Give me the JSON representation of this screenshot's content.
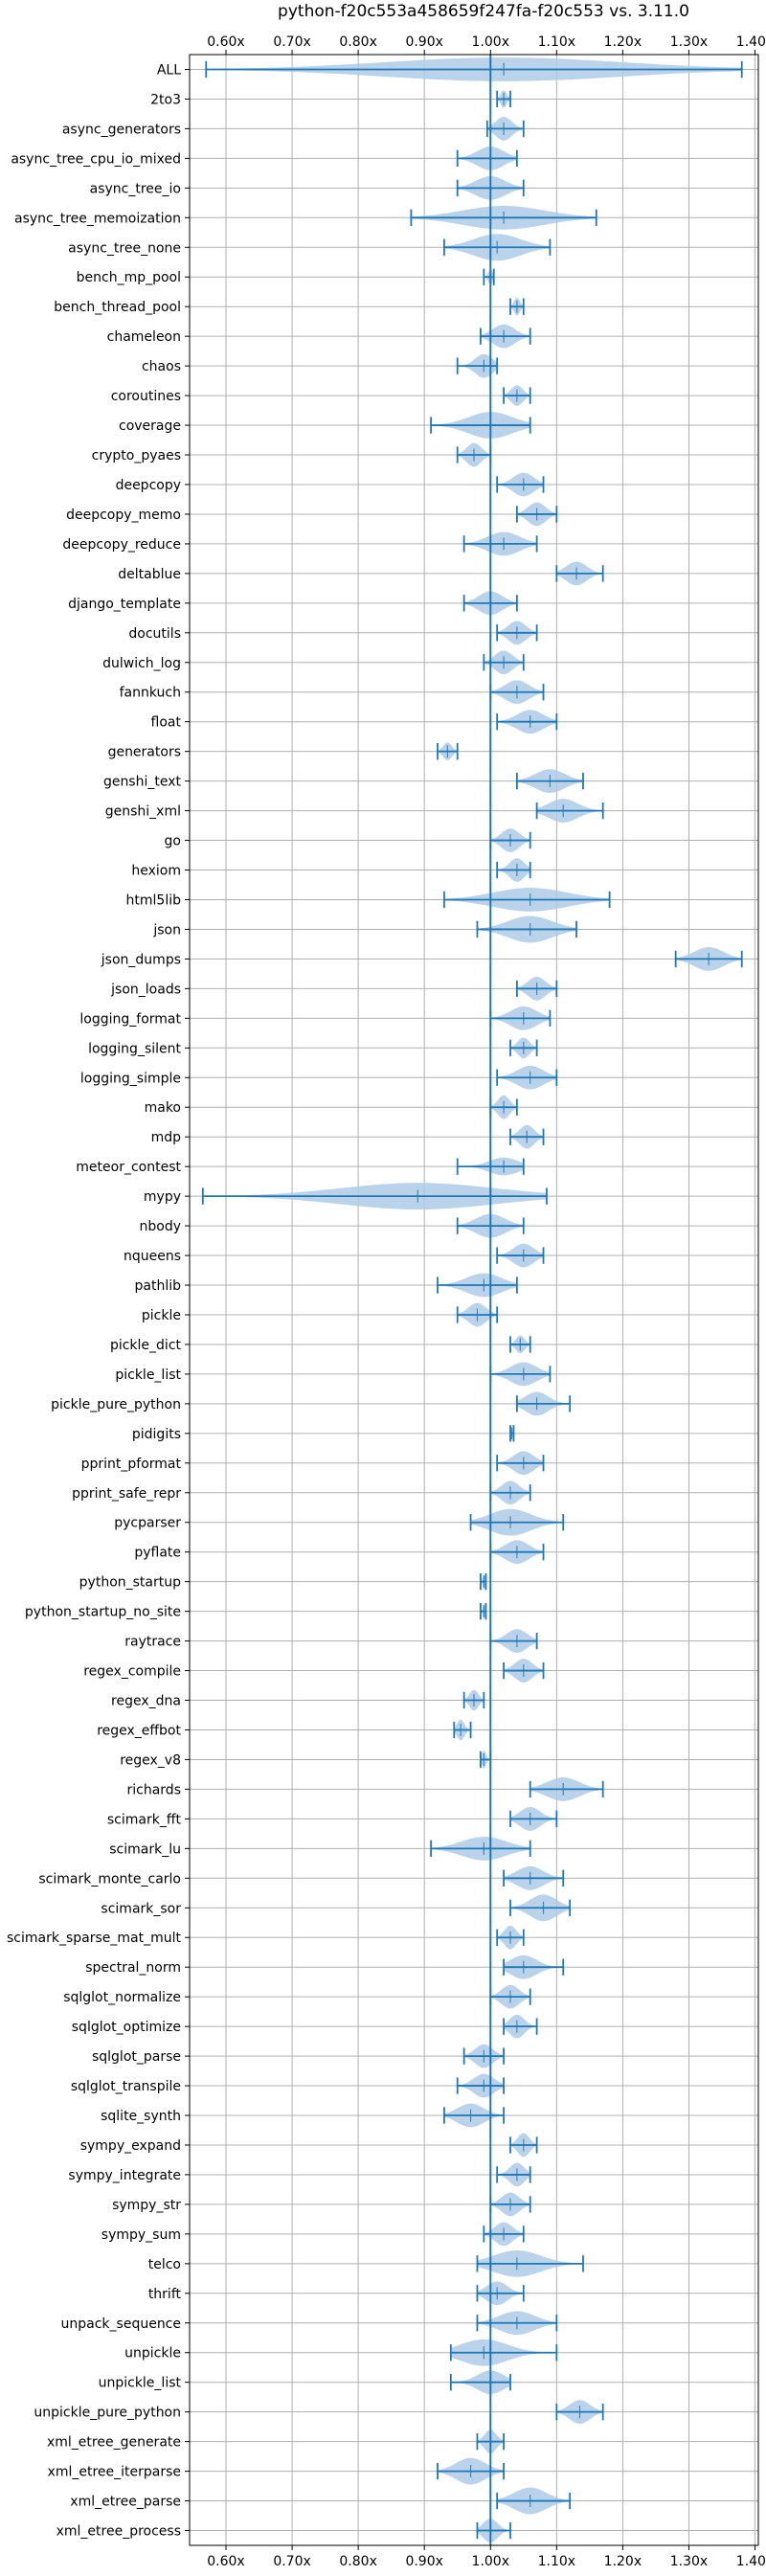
{
  "chart_data": {
    "type": "violin",
    "title": "python-f20c553a458659f247fa-f20c553 vs. 3.11.0",
    "orientation": "horizontal",
    "xlim": [
      0.545,
      1.405
    ],
    "xticks": [
      0.6,
      0.7,
      0.8,
      0.9,
      1.0,
      1.1,
      1.2,
      1.3,
      1.4
    ],
    "xtick_labels": [
      "0.60x",
      "0.70x",
      "0.80x",
      "0.90x",
      "1.00x",
      "1.10x",
      "1.20x",
      "1.30x",
      "1.40x"
    ],
    "xticks_top": true,
    "reference_line": 1.0,
    "grid": true,
    "color": "#1f77b4",
    "fill_color": "#aecbe8",
    "benchmarks": [
      {
        "name": "ALL",
        "min": 0.57,
        "max": 1.38,
        "mean": 1.02,
        "w": 0.4
      },
      {
        "name": "2to3",
        "min": 1.01,
        "max": 1.03,
        "mean": 1.02,
        "w": 0.3
      },
      {
        "name": "async_generators",
        "min": 0.995,
        "max": 1.05,
        "mean": 1.02,
        "w": 0.4
      },
      {
        "name": "async_tree_cpu_io_mixed",
        "min": 0.95,
        "max": 1.04,
        "mean": 1.0,
        "w": 0.4
      },
      {
        "name": "async_tree_io",
        "min": 0.95,
        "max": 1.05,
        "mean": 1.0,
        "w": 0.4
      },
      {
        "name": "async_tree_memoization",
        "min": 0.88,
        "max": 1.16,
        "mean": 1.02,
        "w": 0.4
      },
      {
        "name": "async_tree_none",
        "min": 0.93,
        "max": 1.09,
        "mean": 1.01,
        "w": 0.45
      },
      {
        "name": "bench_mp_pool",
        "min": 0.99,
        "max": 1.005,
        "mean": 1.0,
        "w": 0.25
      },
      {
        "name": "bench_thread_pool",
        "min": 1.03,
        "max": 1.05,
        "mean": 1.04,
        "w": 0.3
      },
      {
        "name": "chameleon",
        "min": 0.985,
        "max": 1.06,
        "mean": 1.02,
        "w": 0.4
      },
      {
        "name": "chaos",
        "min": 0.95,
        "max": 1.01,
        "mean": 0.99,
        "w": 0.4
      },
      {
        "name": "coroutines",
        "min": 1.02,
        "max": 1.06,
        "mean": 1.04,
        "w": 0.35
      },
      {
        "name": "coverage",
        "min": 0.91,
        "max": 1.06,
        "mean": 1.0,
        "w": 0.45
      },
      {
        "name": "crypto_pyaes",
        "min": 0.95,
        "max": 1.0,
        "mean": 0.975,
        "w": 0.4
      },
      {
        "name": "deepcopy",
        "min": 1.01,
        "max": 1.08,
        "mean": 1.05,
        "w": 0.4
      },
      {
        "name": "deepcopy_memo",
        "min": 1.04,
        "max": 1.1,
        "mean": 1.07,
        "w": 0.4
      },
      {
        "name": "deepcopy_reduce",
        "min": 0.96,
        "max": 1.07,
        "mean": 1.02,
        "w": 0.4
      },
      {
        "name": "deltablue",
        "min": 1.1,
        "max": 1.17,
        "mean": 1.13,
        "w": 0.4
      },
      {
        "name": "django_template",
        "min": 0.96,
        "max": 1.04,
        "mean": 1.0,
        "w": 0.4
      },
      {
        "name": "docutils",
        "min": 1.01,
        "max": 1.07,
        "mean": 1.04,
        "w": 0.4
      },
      {
        "name": "dulwich_log",
        "min": 0.99,
        "max": 1.05,
        "mean": 1.02,
        "w": 0.4
      },
      {
        "name": "fannkuch",
        "min": 1.0,
        "max": 1.08,
        "mean": 1.04,
        "w": 0.4
      },
      {
        "name": "float",
        "min": 1.01,
        "max": 1.1,
        "mean": 1.06,
        "w": 0.4
      },
      {
        "name": "generators",
        "min": 0.92,
        "max": 0.95,
        "mean": 0.935,
        "w": 0.3
      },
      {
        "name": "genshi_text",
        "min": 1.04,
        "max": 1.14,
        "mean": 1.09,
        "w": 0.4
      },
      {
        "name": "genshi_xml",
        "min": 1.07,
        "max": 1.17,
        "mean": 1.11,
        "w": 0.4
      },
      {
        "name": "go",
        "min": 1.0,
        "max": 1.06,
        "mean": 1.03,
        "w": 0.4
      },
      {
        "name": "hexiom",
        "min": 1.01,
        "max": 1.06,
        "mean": 1.04,
        "w": 0.4
      },
      {
        "name": "html5lib",
        "min": 0.93,
        "max": 1.18,
        "mean": 1.06,
        "w": 0.4
      },
      {
        "name": "json",
        "min": 0.98,
        "max": 1.13,
        "mean": 1.06,
        "w": 0.45
      },
      {
        "name": "json_dumps",
        "min": 1.28,
        "max": 1.38,
        "mean": 1.33,
        "w": 0.4
      },
      {
        "name": "json_loads",
        "min": 1.04,
        "max": 1.1,
        "mean": 1.07,
        "w": 0.4
      },
      {
        "name": "logging_format",
        "min": 1.0,
        "max": 1.09,
        "mean": 1.05,
        "w": 0.4
      },
      {
        "name": "logging_silent",
        "min": 1.03,
        "max": 1.07,
        "mean": 1.05,
        "w": 0.35
      },
      {
        "name": "logging_simple",
        "min": 1.01,
        "max": 1.1,
        "mean": 1.06,
        "w": 0.4
      },
      {
        "name": "mako",
        "min": 1.0,
        "max": 1.04,
        "mean": 1.02,
        "w": 0.4
      },
      {
        "name": "mdp",
        "min": 1.03,
        "max": 1.08,
        "mean": 1.055,
        "w": 0.4
      },
      {
        "name": "meteor_contest",
        "min": 0.95,
        "max": 1.05,
        "mean": 1.02,
        "w": 0.3
      },
      {
        "name": "mypy",
        "min": 0.565,
        "max": 1.085,
        "mean": 0.89,
        "w": 0.45
      },
      {
        "name": "nbody",
        "min": 0.95,
        "max": 1.05,
        "mean": 1.0,
        "w": 0.4
      },
      {
        "name": "nqueens",
        "min": 1.01,
        "max": 1.08,
        "mean": 1.05,
        "w": 0.4
      },
      {
        "name": "pathlib",
        "min": 0.92,
        "max": 1.04,
        "mean": 0.99,
        "w": 0.4
      },
      {
        "name": "pickle",
        "min": 0.95,
        "max": 1.01,
        "mean": 0.98,
        "w": 0.4
      },
      {
        "name": "pickle_dict",
        "min": 1.03,
        "max": 1.06,
        "mean": 1.045,
        "w": 0.3
      },
      {
        "name": "pickle_list",
        "min": 1.0,
        "max": 1.09,
        "mean": 1.05,
        "w": 0.4
      },
      {
        "name": "pickle_pure_python",
        "min": 1.04,
        "max": 1.12,
        "mean": 1.07,
        "w": 0.4
      },
      {
        "name": "pidigits",
        "min": 1.03,
        "max": 1.035,
        "mean": 1.032,
        "w": 0.2
      },
      {
        "name": "pprint_pformat",
        "min": 1.01,
        "max": 1.08,
        "mean": 1.05,
        "w": 0.4
      },
      {
        "name": "pprint_safe_repr",
        "min": 1.0,
        "max": 1.06,
        "mean": 1.03,
        "w": 0.4
      },
      {
        "name": "pycparser",
        "min": 0.97,
        "max": 1.11,
        "mean": 1.03,
        "w": 0.45
      },
      {
        "name": "pyflate",
        "min": 1.0,
        "max": 1.08,
        "mean": 1.04,
        "w": 0.4
      },
      {
        "name": "python_startup",
        "min": 0.985,
        "max": 0.993,
        "mean": 0.99,
        "w": 0.25
      },
      {
        "name": "python_startup_no_site",
        "min": 0.985,
        "max": 0.993,
        "mean": 0.99,
        "w": 0.25
      },
      {
        "name": "raytrace",
        "min": 1.0,
        "max": 1.07,
        "mean": 1.04,
        "w": 0.4
      },
      {
        "name": "regex_compile",
        "min": 1.02,
        "max": 1.08,
        "mean": 1.05,
        "w": 0.4
      },
      {
        "name": "regex_dna",
        "min": 0.96,
        "max": 0.99,
        "mean": 0.975,
        "w": 0.35
      },
      {
        "name": "regex_effbot",
        "min": 0.945,
        "max": 0.97,
        "mean": 0.955,
        "w": 0.35
      },
      {
        "name": "regex_v8",
        "min": 0.985,
        "max": 1.0,
        "mean": 0.99,
        "w": 0.3
      },
      {
        "name": "richards",
        "min": 1.06,
        "max": 1.17,
        "mean": 1.11,
        "w": 0.4
      },
      {
        "name": "scimark_fft",
        "min": 1.03,
        "max": 1.1,
        "mean": 1.06,
        "w": 0.4
      },
      {
        "name": "scimark_lu",
        "min": 0.91,
        "max": 1.06,
        "mean": 0.99,
        "w": 0.4
      },
      {
        "name": "scimark_monte_carlo",
        "min": 1.02,
        "max": 1.11,
        "mean": 1.06,
        "w": 0.4
      },
      {
        "name": "scimark_sor",
        "min": 1.03,
        "max": 1.12,
        "mean": 1.08,
        "w": 0.45
      },
      {
        "name": "scimark_sparse_mat_mult",
        "min": 1.01,
        "max": 1.05,
        "mean": 1.03,
        "w": 0.4
      },
      {
        "name": "spectral_norm",
        "min": 1.02,
        "max": 1.11,
        "mean": 1.05,
        "w": 0.4
      },
      {
        "name": "sqlglot_normalize",
        "min": 1.0,
        "max": 1.06,
        "mean": 1.03,
        "w": 0.4
      },
      {
        "name": "sqlglot_optimize",
        "min": 1.02,
        "max": 1.07,
        "mean": 1.04,
        "w": 0.4
      },
      {
        "name": "sqlglot_parse",
        "min": 0.96,
        "max": 1.02,
        "mean": 0.99,
        "w": 0.4
      },
      {
        "name": "sqlglot_transpile",
        "min": 0.95,
        "max": 1.02,
        "mean": 0.99,
        "w": 0.4
      },
      {
        "name": "sqlite_synth",
        "min": 0.93,
        "max": 1.02,
        "mean": 0.97,
        "w": 0.4
      },
      {
        "name": "sympy_expand",
        "min": 1.03,
        "max": 1.07,
        "mean": 1.05,
        "w": 0.4
      },
      {
        "name": "sympy_integrate",
        "min": 1.01,
        "max": 1.06,
        "mean": 1.04,
        "w": 0.4
      },
      {
        "name": "sympy_str",
        "min": 1.0,
        "max": 1.06,
        "mean": 1.03,
        "w": 0.4
      },
      {
        "name": "sympy_sum",
        "min": 0.99,
        "max": 1.05,
        "mean": 1.02,
        "w": 0.4
      },
      {
        "name": "telco",
        "min": 0.98,
        "max": 1.14,
        "mean": 1.04,
        "w": 0.45
      },
      {
        "name": "thrift",
        "min": 0.98,
        "max": 1.05,
        "mean": 1.01,
        "w": 0.4
      },
      {
        "name": "unpack_sequence",
        "min": 0.98,
        "max": 1.1,
        "mean": 1.04,
        "w": 0.4
      },
      {
        "name": "unpickle",
        "min": 0.94,
        "max": 1.1,
        "mean": 0.99,
        "w": 0.45
      },
      {
        "name": "unpickle_list",
        "min": 0.94,
        "max": 1.03,
        "mean": 1.0,
        "w": 0.4
      },
      {
        "name": "unpickle_pure_python",
        "min": 1.1,
        "max": 1.17,
        "mean": 1.135,
        "w": 0.4
      },
      {
        "name": "xml_etree_generate",
        "min": 0.98,
        "max": 1.02,
        "mean": 1.0,
        "w": 0.4
      },
      {
        "name": "xml_etree_iterparse",
        "min": 0.92,
        "max": 1.02,
        "mean": 0.97,
        "w": 0.45
      },
      {
        "name": "xml_etree_parse",
        "min": 1.01,
        "max": 1.12,
        "mean": 1.06,
        "w": 0.45
      },
      {
        "name": "xml_etree_process",
        "min": 0.98,
        "max": 1.03,
        "mean": 1.0,
        "w": 0.4
      }
    ]
  }
}
